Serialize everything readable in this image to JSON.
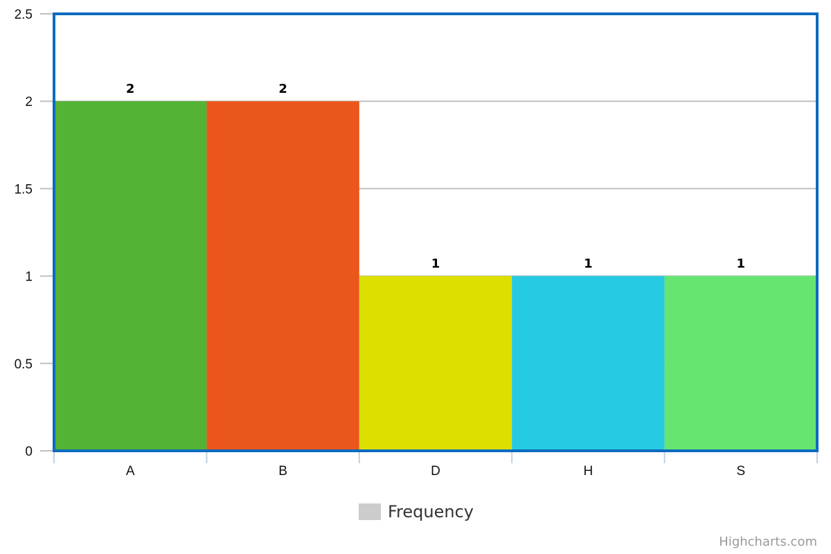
{
  "chart_data": {
    "type": "bar",
    "categories": [
      "A",
      "B",
      "D",
      "H",
      "S"
    ],
    "series": [
      {
        "name": "Frequency",
        "values": [
          2,
          2,
          1,
          1,
          1
        ]
      }
    ],
    "colors": [
      "#52b334",
      "#eb561c",
      "#dce000",
      "#25c9e2",
      "#66e570"
    ],
    "ylim": [
      0,
      2.5
    ],
    "yticks": [
      "0",
      "0.5",
      "1",
      "1.5",
      "2",
      "2.5"
    ],
    "grid": true,
    "legend": "bottom-center",
    "data_labels": true,
    "plot_border_color": "#0d6bbf"
  },
  "legend": {
    "label": "Frequency",
    "swatch_color": "#cccccc"
  },
  "credits": "Highcharts.com"
}
